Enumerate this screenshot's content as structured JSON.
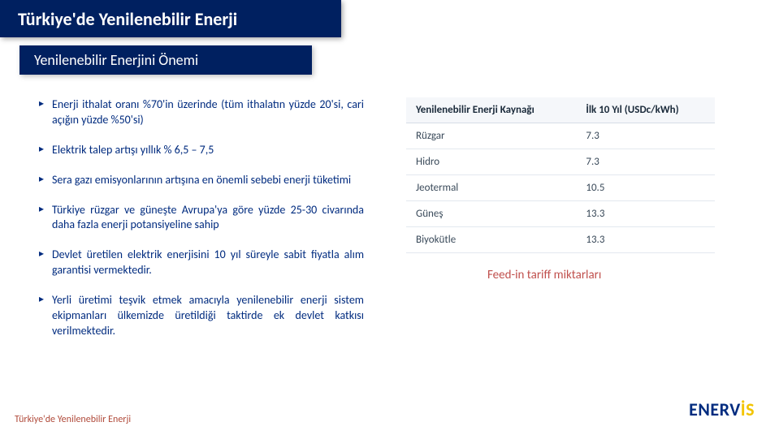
{
  "title": "Türkiye'de Yenilenebilir Enerji",
  "subtitle": "Yenilenebilir Enerjini Önemi",
  "bullets": [
    "Enerji ithalat oranı %70'in üzerinde (tüm ithalatın yüzde 20'si, cari açığın yüzde %50'si)",
    "Elektrik talep artışı yıllık % 6,5 – 7,5",
    "Sera gazı emisyonlarının artışına en önemli sebebi enerji tüketimi",
    "Türkiye rüzgar ve güneşte Avrupa'ya göre yüzde 25-30 civarında daha fazla enerji potansiyeline sahip",
    "Devlet üretilen elektrik enerjisini 10 yıl süreyle sabit fiyatla alım garantisi vermektedir.",
    "Yerli üretimi teşvik etmek amacıyla yenilenebilir enerji sistem ekipmanları ülkemizde üretildiği taktirde ek devlet katkısı verilmektedir."
  ],
  "table": {
    "columns": [
      "Yenilenebilir Enerji Kaynağı",
      "İlk 10 Yıl (USDc/kWh)"
    ],
    "rows": [
      [
        "Rüzgar",
        "7.3"
      ],
      [
        "Hidro",
        "7.3"
      ],
      [
        "Jeotermal",
        "10.5"
      ],
      [
        "Güneş",
        "13.3"
      ],
      [
        "Biyokütle",
        "13.3"
      ]
    ],
    "header_bg": "#f5f7fa",
    "border_color": "#e3e8ef",
    "text_color": "#3a4a5a"
  },
  "caption": "Feed-in tariff miktarları",
  "footer": "Türkiye'de Yenilenebilir Enerji",
  "logo": {
    "part1": "ENERV",
    "part2": "İS"
  },
  "colors": {
    "title_bg": "#002060",
    "title_fg": "#ffffff",
    "bullet_fg": "#002b7f",
    "caption_fg": "#c0504d",
    "footer_fg": "#b04a3a",
    "logo_blue": "#002b7f",
    "logo_yellow": "#f2c400"
  }
}
